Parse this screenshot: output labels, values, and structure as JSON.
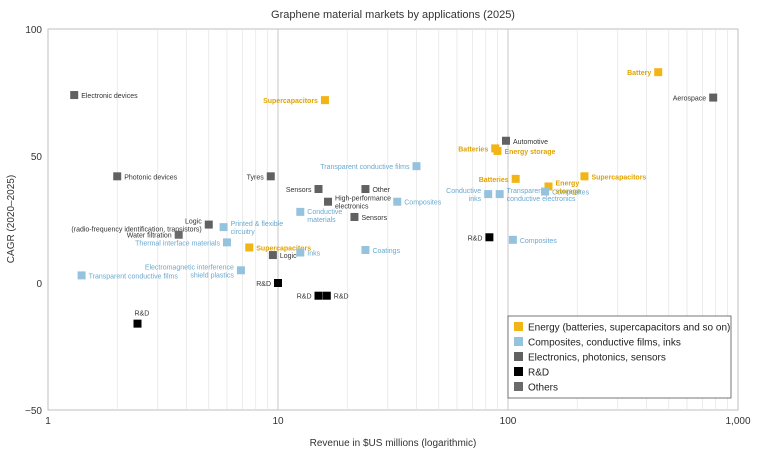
{
  "chart_data": {
    "type": "scatter",
    "title": "Graphene material markets by applications (2025)",
    "xlabel": "Revenue in $US millions (logarithmic)",
    "ylabel": "CAGR (2020–2025)",
    "x_scale": "log",
    "xlim": [
      1,
      1000
    ],
    "ylim": [
      -50,
      100
    ],
    "x_ticks": [
      {
        "value": 1,
        "label": "1"
      },
      {
        "value": 10,
        "label": "10"
      },
      {
        "value": 100,
        "label": "100"
      },
      {
        "value": 1000,
        "label": "1,000"
      }
    ],
    "y_ticks": [
      {
        "value": 100,
        "label": "100"
      },
      {
        "value": 50,
        "label": "50"
      },
      {
        "value": 0,
        "label": "0"
      },
      {
        "value": -50,
        "label": "−50"
      }
    ],
    "grid": "vertical log gridlines",
    "legend_position": "bottom-right",
    "series": [
      {
        "name": "Energy (batteries, supercapacitors and so on)",
        "color": "#f2b516",
        "points": [
          {
            "x": 16,
            "y": 72,
            "label": "Supercapacitors",
            "anchor": "left"
          },
          {
            "x": 450,
            "y": 83,
            "label": "Battery",
            "anchor": "left"
          },
          {
            "x": 88,
            "y": 53,
            "label": "Batteries",
            "anchor": "left"
          },
          {
            "x": 90,
            "y": 52,
            "label": "Energy storage",
            "anchor": "right"
          },
          {
            "x": 108,
            "y": 41,
            "label": "Batteries",
            "anchor": "left"
          },
          {
            "x": 150,
            "y": 38,
            "label": "Energy\nstorage",
            "anchor": "right"
          },
          {
            "x": 215,
            "y": 42,
            "label": "Supercapacitors",
            "anchor": "right"
          },
          {
            "x": 7.5,
            "y": 14,
            "label": "Supercapacitors",
            "anchor": "right"
          }
        ]
      },
      {
        "name": "Composites, conductive films, inks",
        "color": "#95c3de",
        "points": [
          {
            "x": 1.4,
            "y": 3,
            "label": "Transparent conductive films",
            "anchor": "right"
          },
          {
            "x": 5.8,
            "y": 22,
            "label": "Printed & flexible\ncircuitry",
            "anchor": "right"
          },
          {
            "x": 6,
            "y": 16,
            "label": "Thermal interface materials",
            "anchor": "left"
          },
          {
            "x": 6.9,
            "y": 5,
            "label": "Electromagnetic interference\nshield plastics",
            "anchor": "left"
          },
          {
            "x": 12.5,
            "y": 28,
            "label": "Conductive\nmaterials",
            "anchor": "below"
          },
          {
            "x": 12.5,
            "y": 12,
            "label": "Inks",
            "anchor": "right"
          },
          {
            "x": 24,
            "y": 13,
            "label": "Coatings",
            "anchor": "right"
          },
          {
            "x": 33,
            "y": 32,
            "label": "Composites",
            "anchor": "right"
          },
          {
            "x": 40,
            "y": 46,
            "label": "Transparent conductive films",
            "anchor": "left"
          },
          {
            "x": 82,
            "y": 35,
            "label": "Conductive\ninks",
            "anchor": "left"
          },
          {
            "x": 92,
            "y": 35,
            "label": "Transparent\nconductive electronics",
            "anchor": "right"
          },
          {
            "x": 145,
            "y": 36,
            "label": "Composites",
            "anchor": "right"
          },
          {
            "x": 105,
            "y": 17,
            "label": "Composites",
            "anchor": "right"
          }
        ]
      },
      {
        "name": "Electronics, photonics, sensors",
        "color": "#616161",
        "points": [
          {
            "x": 1.3,
            "y": 74,
            "label": "Electronic devices",
            "anchor": "right"
          },
          {
            "x": 2,
            "y": 42,
            "label": "Photonic devices",
            "anchor": "right"
          },
          {
            "x": 5,
            "y": 23,
            "label": "Logic\n(radio-frequency identification, transistors)",
            "anchor": "left"
          },
          {
            "x": 9.3,
            "y": 42,
            "label": "Tyres",
            "anchor": "left"
          },
          {
            "x": 9.5,
            "y": 11,
            "label": "Logic",
            "anchor": "right"
          },
          {
            "x": 15,
            "y": 37,
            "label": "Sensors",
            "anchor": "left"
          },
          {
            "x": 16.5,
            "y": 32,
            "label": "High-performance\nelectronics",
            "anchor": "right"
          },
          {
            "x": 21.5,
            "y": 26,
            "label": "Sensors",
            "anchor": "right"
          },
          {
            "x": 24,
            "y": 37,
            "label": "Other",
            "anchor": "right"
          },
          {
            "x": 98,
            "y": 56,
            "label": "Automotive",
            "anchor": "right"
          },
          {
            "x": 780,
            "y": 73,
            "label": "Aerospace",
            "anchor": "left"
          }
        ]
      },
      {
        "name": "R&D",
        "color": "#000000",
        "points": [
          {
            "x": 2.45,
            "y": -16,
            "label": "R&D",
            "anchor": "above"
          },
          {
            "x": 10,
            "y": 0,
            "label": "R&D",
            "anchor": "left"
          },
          {
            "x": 15,
            "y": -5,
            "label": "R&D",
            "anchor": "left"
          },
          {
            "x": 16.3,
            "y": -5,
            "label": "R&D",
            "anchor": "right"
          },
          {
            "x": 83,
            "y": 18,
            "label": "R&D",
            "anchor": "left"
          }
        ]
      },
      {
        "name": "Others",
        "color": "#6a6a6a",
        "points": [
          {
            "x": 3.7,
            "y": 19,
            "label": "Water filtration",
            "anchor": "left"
          }
        ]
      }
    ]
  }
}
